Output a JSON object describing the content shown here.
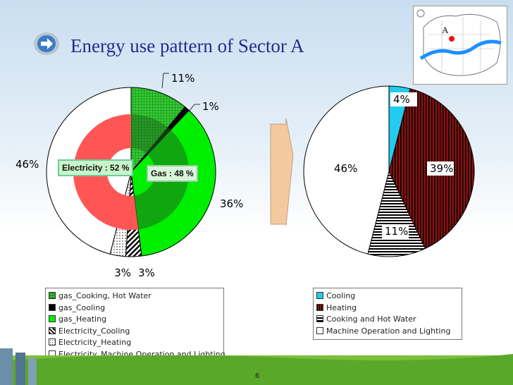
{
  "slide": {
    "title": "Energy use pattern of Sector A",
    "page_number": "6",
    "map_label": "A"
  },
  "colors": {
    "title": "#1f2d8f",
    "gas_cooking": "#33cc33",
    "gas_cooling": "#000000",
    "gas_heating": "#00ee00",
    "elec_cooling": "#ffffff",
    "elec_heating": "#ff4444",
    "elec_machine": "#ffffff",
    "cooling": "#22ccee",
    "heating": "#8b1010",
    "cooking_hot_water": "#ffffff",
    "machine_lighting": "#ffffff"
  },
  "chart_data": [
    {
      "type": "pie",
      "inner_ring": {
        "labels": [
          "Electricity : 52 %",
          "Gas : 48 %"
        ],
        "values": [
          52,
          48
        ]
      },
      "slices": [
        {
          "label": "gas_Cooking, Hot Water",
          "value": 11,
          "data_label": "11%",
          "pattern": "grid-green"
        },
        {
          "label": "gas_Cooling",
          "value": 1,
          "data_label": "1%",
          "pattern": "solid-black"
        },
        {
          "label": "gas_Heating",
          "value": 36,
          "data_label": "36%",
          "pattern": "solid-green"
        },
        {
          "label": "Electricity_Cooling",
          "value": 3,
          "data_label": "3%",
          "pattern": "diag-black"
        },
        {
          "label": "Electricity_Heating",
          "value": 3,
          "data_label": "3%",
          "pattern": "dots-red"
        },
        {
          "label": "Electricity_Machine Operation and Lighting",
          "value": 46,
          "data_label": "46%",
          "pattern": "solid-white"
        }
      ],
      "legend": [
        "gas_Cooking, Hot Water",
        "gas_Cooling",
        "gas_Heating",
        "Electricity_Cooling",
        "Electricity_Heating",
        "Electricity_Machine Operation and Lighting"
      ],
      "legend_placement": "bottom"
    },
    {
      "type": "pie",
      "slices": [
        {
          "label": "Cooling",
          "value": 4,
          "data_label": "4%",
          "pattern": "solid-cyan"
        },
        {
          "label": "Heating",
          "value": 39,
          "data_label": "39%",
          "pattern": "vstripes-red"
        },
        {
          "label": "Cooking and Hot Water",
          "value": 11,
          "data_label": "11%",
          "pattern": "hstripes-black"
        },
        {
          "label": "Machine Operation and Lighting",
          "value": 46,
          "data_label": "46%",
          "pattern": "solid-white"
        }
      ],
      "legend": [
        "Cooling",
        "Heating",
        "Cooking and Hot Water",
        "Machine Operation and Lighting"
      ],
      "legend_placement": "bottom"
    }
  ]
}
